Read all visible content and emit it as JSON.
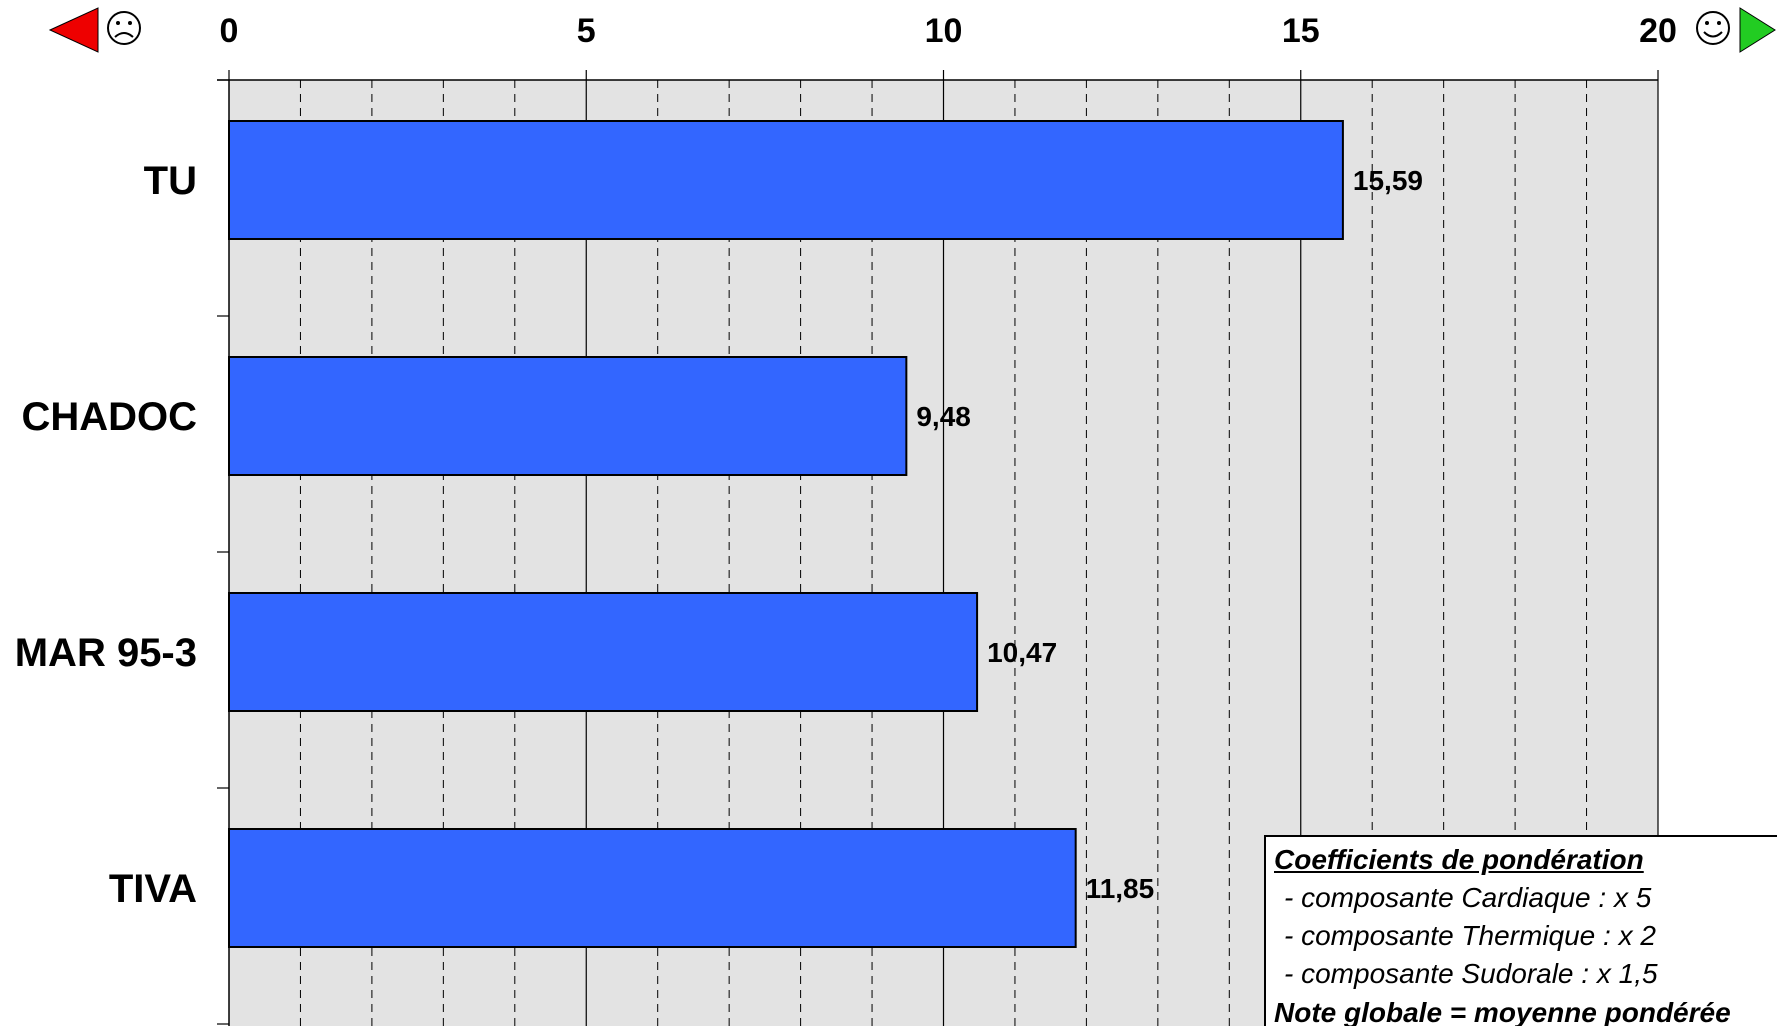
{
  "chart_data": {
    "type": "bar",
    "orientation": "horizontal",
    "categories": [
      "TU",
      "CHADOC",
      "MAR 95-3",
      "TIVA"
    ],
    "values": [
      15.59,
      9.48,
      10.47,
      11.85
    ],
    "value_labels": [
      "15,59",
      "9,48",
      "10,47",
      "11,85"
    ],
    "xlim": [
      0,
      20
    ],
    "x_ticks": [
      "0",
      "5",
      "10",
      "15",
      "20"
    ],
    "x_axis_position": "top",
    "grid": true,
    "bar_color": "#3366ff",
    "plot_background": "#e3e3e3",
    "low_end_icon": "red-left-arrow-frown-face-icon",
    "high_end_icon": "smile-face-green-right-arrow-icon",
    "low_arrow_color": "#ee0000",
    "high_arrow_color": "#22cc22"
  },
  "legend": {
    "title": "Coefficients de pondération",
    "lines": [
      "- composante Cardiaque : x 5",
      "- composante Thermique : x 2",
      "- composante Sudorale : x 1,5"
    ],
    "note": "Note globale = moyenne pondérée"
  }
}
